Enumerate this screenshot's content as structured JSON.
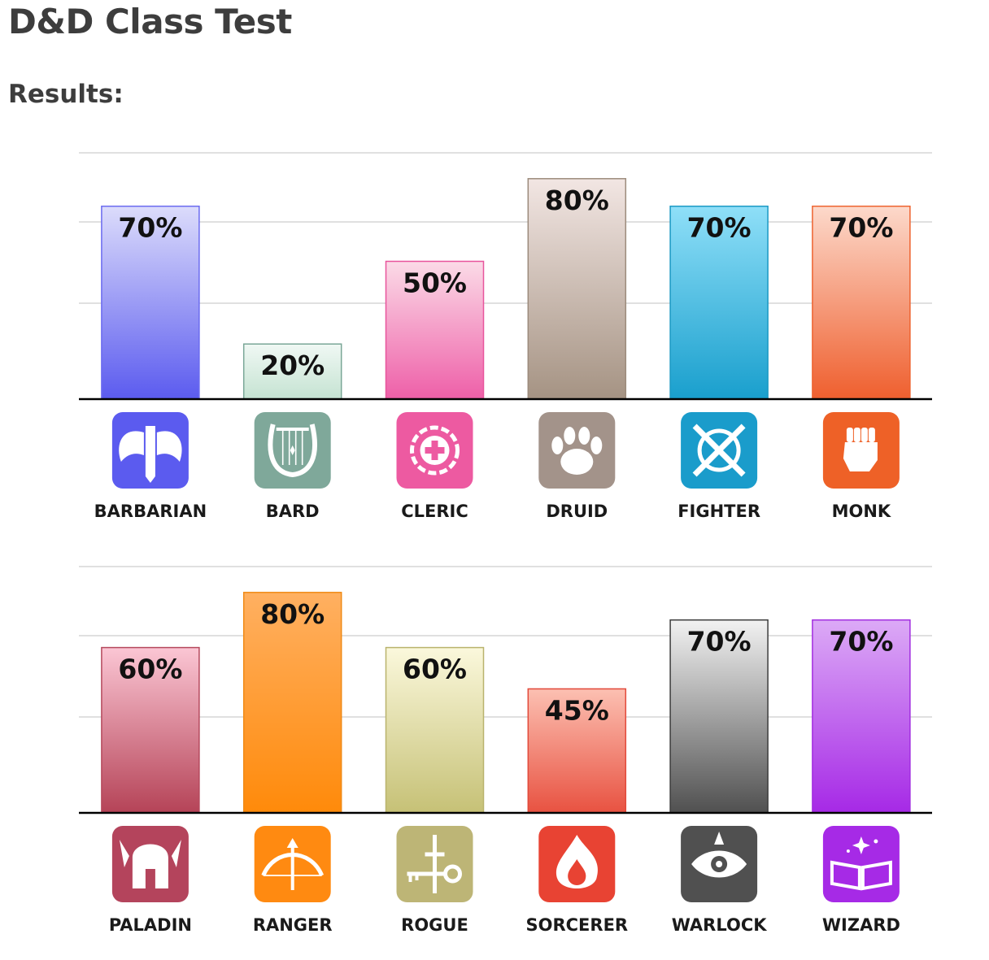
{
  "page": {
    "title": "D&D Class Test",
    "subtitle": "Results:"
  },
  "chart_data": [
    {
      "type": "bar",
      "categories": [
        "BARBARIAN",
        "BARD",
        "CLERIC",
        "DRUID",
        "FIGHTER",
        "MONK"
      ],
      "values": [
        70,
        20,
        50,
        80,
        70,
        70
      ],
      "value_labels": [
        "70%",
        "20%",
        "50%",
        "80%",
        "70%",
        "70%"
      ],
      "ylim": [
        0,
        100
      ],
      "grid": true,
      "colors": [
        {
          "top": "#dcdcfb",
          "bottom": "#5b5bef",
          "border": "#6b6bf0",
          "icon": "#5b5bef"
        },
        {
          "top": "#f0f8f4",
          "bottom": "#c5e3d2",
          "border": "#7aa797",
          "icon": "#7fa89a"
        },
        {
          "top": "#fbdbe7",
          "bottom": "#ee5fa8",
          "border": "#e8559c",
          "icon": "#ed5aa1"
        },
        {
          "top": "#f2e6e3",
          "bottom": "#a59383",
          "border": "#9c8b7c",
          "icon": "#a3938a"
        },
        {
          "top": "#8fdff8",
          "bottom": "#199fcd",
          "border": "#1b99c4",
          "icon": "#1a9ccb"
        },
        {
          "top": "#fcd9cb",
          "bottom": "#ef5f2e",
          "border": "#ee6330",
          "icon": "#ee6127"
        }
      ],
      "icons": [
        "double-axe-icon",
        "lyre-icon",
        "holy-symbol-icon",
        "paw-print-icon",
        "crossed-swords-shield-icon",
        "fist-icon"
      ]
    },
    {
      "type": "bar",
      "categories": [
        "PALADIN",
        "RANGER",
        "ROGUE",
        "SORCERER",
        "WARLOCK",
        "WIZARD"
      ],
      "values": [
        60,
        80,
        60,
        45,
        70,
        70
      ],
      "value_labels": [
        "60%",
        "80%",
        "60%",
        "45%",
        "70%",
        "70%"
      ],
      "ylim": [
        0,
        100
      ],
      "grid": true,
      "colors": [
        {
          "top": "#fbc6d4",
          "bottom": "#b54357",
          "border": "#b5495d",
          "icon": "#b4445c"
        },
        {
          "top": "#ffb061",
          "bottom": "#ff8a0a",
          "border": "#f08a16",
          "icon": "#ff8a11"
        },
        {
          "top": "#fbf8dc",
          "bottom": "#c6c176",
          "border": "#b9b36d",
          "icon": "#bdb576"
        },
        {
          "top": "#fcc0b2",
          "bottom": "#e85241",
          "border": "#e24a3b",
          "icon": "#e84333"
        },
        {
          "top": "#f2f2f2",
          "bottom": "#505050",
          "border": "#3d3d3d",
          "icon": "#505050"
        },
        {
          "top": "#dcaaf6",
          "bottom": "#a629e6",
          "border": "#a22ee0",
          "icon": "#a62ae6"
        }
      ],
      "icons": [
        "winged-helmet-icon",
        "bow-arrow-icon",
        "key-dagger-icon",
        "flame-icon",
        "eye-icon",
        "spellbook-icon"
      ]
    }
  ]
}
